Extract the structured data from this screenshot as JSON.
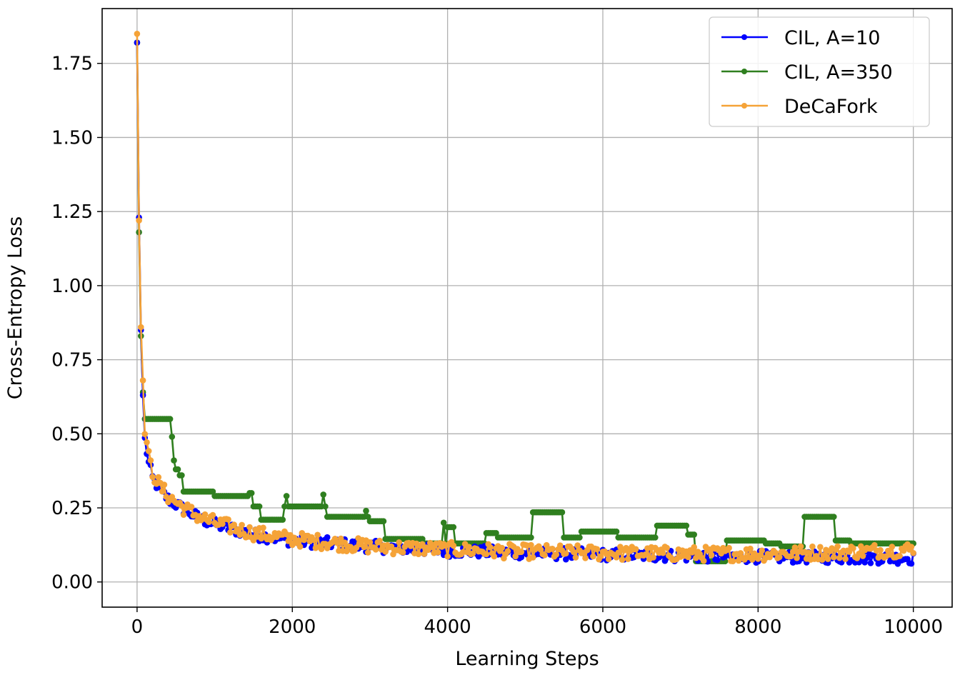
{
  "chart_data": {
    "type": "line",
    "title": "",
    "xlabel": "Learning Steps",
    "ylabel": "Cross-Entropy Loss",
    "xlim": [
      -450,
      10500
    ],
    "ylim": [
      -0.085,
      1.935
    ],
    "x_ticks": [
      0,
      2000,
      4000,
      6000,
      8000,
      10000
    ],
    "x_tick_labels": [
      "0",
      "2000",
      "4000",
      "6000",
      "8000",
      "10000"
    ],
    "y_ticks": [
      0.0,
      0.25,
      0.5,
      0.75,
      1.0,
      1.25,
      1.5,
      1.75
    ],
    "y_tick_labels": [
      "0.00",
      "0.25",
      "0.50",
      "0.75",
      "1.00",
      "1.25",
      "1.50",
      "1.75"
    ],
    "grid": true,
    "legend_position": "top-right",
    "sampling": "markers every 25 learning steps, 401 points per series (x = 0 to 10000)",
    "series": [
      {
        "name": "CIL, A=10",
        "color": "#0000ff",
        "marker": "circle",
        "anchors": {
          "x": [
            0,
            25,
            50,
            75,
            100,
            150,
            200,
            300,
            400,
            600,
            800,
            1000,
            1500,
            2000,
            3000,
            4000,
            5000,
            6000,
            7000,
            8000,
            9000,
            10000
          ],
          "y": [
            1.82,
            1.23,
            0.85,
            0.63,
            0.48,
            0.4,
            0.35,
            0.31,
            0.28,
            0.245,
            0.215,
            0.195,
            0.16,
            0.14,
            0.12,
            0.105,
            0.098,
            0.092,
            0.088,
            0.085,
            0.083,
            0.08
          ]
        },
        "noise_amplitude": 0.02
      },
      {
        "name": "CIL, A=350",
        "color": "#2f7f1f",
        "marker": "circle",
        "steps": [
          {
            "x": 0,
            "y": 1.82
          },
          {
            "x": 25,
            "y": 1.18
          },
          {
            "x": 50,
            "y": 0.83
          },
          {
            "x": 75,
            "y": 0.64
          },
          {
            "x": 100,
            "y": 0.55
          },
          {
            "x": 450,
            "y": 0.49
          },
          {
            "x": 475,
            "y": 0.41
          },
          {
            "x": 500,
            "y": 0.38
          },
          {
            "x": 550,
            "y": 0.36
          },
          {
            "x": 600,
            "y": 0.305
          },
          {
            "x": 1000,
            "y": 0.29
          },
          {
            "x": 1450,
            "y": 0.3
          },
          {
            "x": 1500,
            "y": 0.255
          },
          {
            "x": 1600,
            "y": 0.21
          },
          {
            "x": 1900,
            "y": 0.255
          },
          {
            "x": 2450,
            "y": 0.22
          },
          {
            "x": 3000,
            "y": 0.205
          },
          {
            "x": 3200,
            "y": 0.145
          },
          {
            "x": 3700,
            "y": 0.13
          },
          {
            "x": 4000,
            "y": 0.185
          },
          {
            "x": 4100,
            "y": 0.13
          },
          {
            "x": 4500,
            "y": 0.165
          },
          {
            "x": 4650,
            "y": 0.15
          },
          {
            "x": 5100,
            "y": 0.235
          },
          {
            "x": 5500,
            "y": 0.15
          },
          {
            "x": 5700,
            "y": 0.17
          },
          {
            "x": 6200,
            "y": 0.15
          },
          {
            "x": 6700,
            "y": 0.19
          },
          {
            "x": 7100,
            "y": 0.16
          },
          {
            "x": 7200,
            "y": 0.07
          },
          {
            "x": 7600,
            "y": 0.14
          },
          {
            "x": 8100,
            "y": 0.13
          },
          {
            "x": 8300,
            "y": 0.12
          },
          {
            "x": 8600,
            "y": 0.22
          },
          {
            "x": 9000,
            "y": 0.14
          },
          {
            "x": 9200,
            "y": 0.13
          }
        ],
        "spikes": [
          {
            "x": 1925,
            "y": 0.29
          },
          {
            "x": 2400,
            "y": 0.295
          },
          {
            "x": 2950,
            "y": 0.24
          },
          {
            "x": 3950,
            "y": 0.2
          },
          {
            "x": 5700,
            "y": 0.15
          }
        ]
      },
      {
        "name": "DeCaFork",
        "color": "#f5a338",
        "marker": "circle",
        "anchors": {
          "x": [
            0,
            25,
            50,
            75,
            100,
            150,
            200,
            300,
            400,
            600,
            800,
            1000,
            1500,
            2000,
            3000,
            4000,
            5000,
            6000,
            7000,
            8000,
            9000,
            10000
          ],
          "y": [
            1.85,
            1.22,
            0.86,
            0.68,
            0.52,
            0.42,
            0.37,
            0.32,
            0.29,
            0.25,
            0.22,
            0.2,
            0.165,
            0.145,
            0.12,
            0.11,
            0.102,
            0.098,
            0.095,
            0.095,
            0.1,
            0.11
          ]
        },
        "noise_amplitude": 0.025
      }
    ]
  }
}
